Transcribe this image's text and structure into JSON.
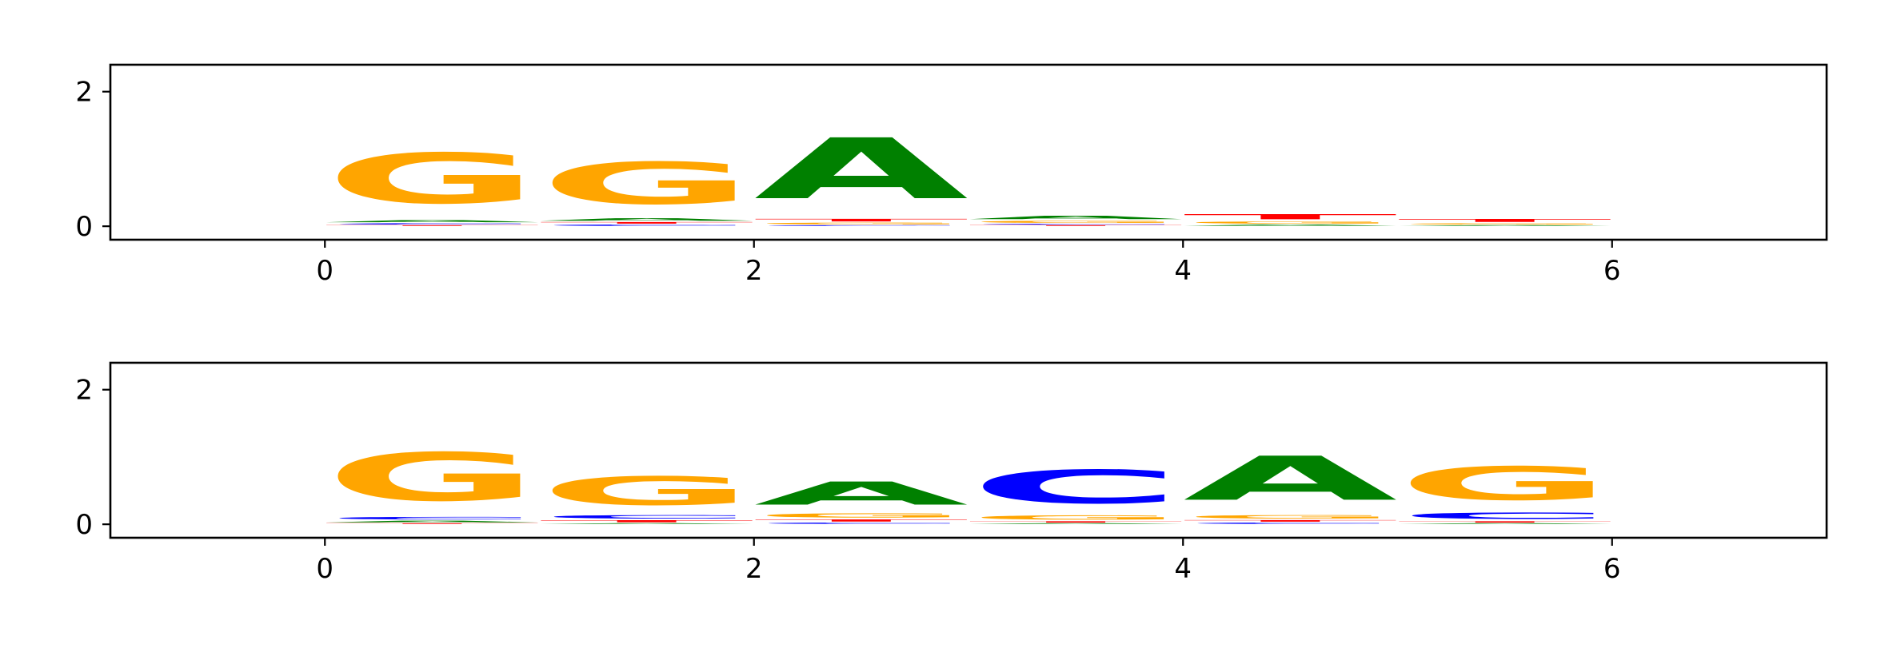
{
  "chart_data": [
    {
      "type": "sequence-logo",
      "title": "",
      "xlabel": "",
      "ylabel": "",
      "xlim": [
        -1,
        7
      ],
      "ylim": [
        -0.2,
        2.4
      ],
      "x_ticks": [
        "0",
        "2",
        "4",
        "6"
      ],
      "y_ticks": [
        "0",
        "2"
      ],
      "grid": false,
      "colors": {
        "A": "#008000",
        "C": "#0000ff",
        "G": "#ffa500",
        "T": "#ff0000"
      },
      "positions": [
        {
          "x_start": 0,
          "stack": [
            {
              "letter": "T",
              "height": 0.02
            },
            {
              "letter": "C",
              "height": 0.03
            },
            {
              "letter": "A",
              "height": 0.05
            },
            {
              "letter": "G",
              "height": 1.2
            }
          ]
        },
        {
          "x_start": 1,
          "stack": [
            {
              "letter": "C",
              "height": 0.03
            },
            {
              "letter": "T",
              "height": 0.04
            },
            {
              "letter": "A",
              "height": 0.06
            },
            {
              "letter": "G",
              "height": 1.0
            }
          ]
        },
        {
          "x_start": 2,
          "stack": [
            {
              "letter": "C",
              "height": 0.02
            },
            {
              "letter": "G",
              "height": 0.04
            },
            {
              "letter": "T",
              "height": 0.06
            },
            {
              "letter": "A",
              "height": 1.45
            }
          ]
        },
        {
          "x_start": 3,
          "stack": [
            {
              "letter": "T",
              "height": 0.02
            },
            {
              "letter": "C",
              "height": 0.02
            },
            {
              "letter": "G",
              "height": 0.05
            },
            {
              "letter": "A",
              "height": 0.08
            }
          ]
        },
        {
          "x_start": 4,
          "stack": [
            {
              "letter": "A",
              "height": 0.03
            },
            {
              "letter": "G",
              "height": 0.05
            },
            {
              "letter": "T",
              "height": 0.12
            }
          ]
        },
        {
          "x_start": 5,
          "stack": [
            {
              "letter": "A",
              "height": 0.02
            },
            {
              "letter": "G",
              "height": 0.03
            },
            {
              "letter": "T",
              "height": 0.07
            }
          ]
        }
      ]
    },
    {
      "type": "sequence-logo",
      "title": "",
      "xlabel": "",
      "ylabel": "",
      "xlim": [
        -1,
        7
      ],
      "ylim": [
        -0.2,
        2.4
      ],
      "x_ticks": [
        "0",
        "2",
        "4",
        "6"
      ],
      "y_ticks": [
        "0",
        "2"
      ],
      "grid": false,
      "colors": {
        "A": "#008000",
        "C": "#0000ff",
        "G": "#ffa500",
        "T": "#ff0000"
      },
      "positions": [
        {
          "x_start": 0,
          "stack": [
            {
              "letter": "T",
              "height": 0.02
            },
            {
              "letter": "A",
              "height": 0.04
            },
            {
              "letter": "C",
              "height": 0.06
            },
            {
              "letter": "G",
              "height": 1.15
            }
          ]
        },
        {
          "x_start": 1,
          "stack": [
            {
              "letter": "A",
              "height": 0.02
            },
            {
              "letter": "T",
              "height": 0.05
            },
            {
              "letter": "C",
              "height": 0.08
            },
            {
              "letter": "G",
              "height": 0.68
            }
          ]
        },
        {
          "x_start": 2,
          "stack": [
            {
              "letter": "C",
              "height": 0.03
            },
            {
              "letter": "T",
              "height": 0.05
            },
            {
              "letter": "G",
              "height": 0.1
            },
            {
              "letter": "A",
              "height": 0.55
            }
          ]
        },
        {
          "x_start": 3,
          "stack": [
            {
              "letter": "A",
              "height": 0.02
            },
            {
              "letter": "T",
              "height": 0.03
            },
            {
              "letter": "G",
              "height": 0.1
            },
            {
              "letter": "C",
              "height": 0.8
            }
          ]
        },
        {
          "x_start": 4,
          "stack": [
            {
              "letter": "C",
              "height": 0.03
            },
            {
              "letter": "T",
              "height": 0.04
            },
            {
              "letter": "G",
              "height": 0.08
            },
            {
              "letter": "A",
              "height": 1.05
            }
          ]
        },
        {
          "x_start": 5,
          "stack": [
            {
              "letter": "A",
              "height": 0.02
            },
            {
              "letter": "T",
              "height": 0.03
            },
            {
              "letter": "C",
              "height": 0.15
            },
            {
              "letter": "G",
              "height": 0.8
            }
          ]
        }
      ]
    }
  ]
}
